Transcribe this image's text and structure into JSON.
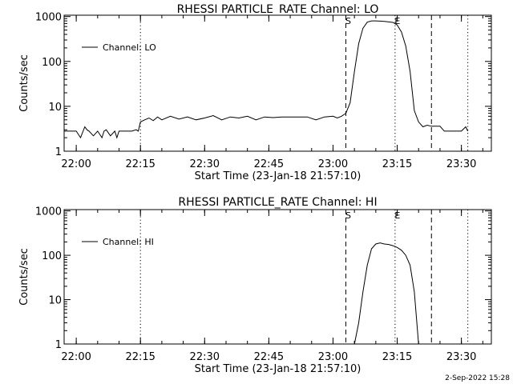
{
  "footer": {
    "timestamp": "2-Sep-2022 15:28"
  },
  "chart_data": [
    {
      "type": "line",
      "title": "RHESSI PARTICLE_RATE Channel: LO",
      "xlabel": "Start Time (23-Jan-18 21:57:10)",
      "ylabel": "Counts/sec",
      "yscale": "log",
      "ylim": [
        1,
        1000
      ],
      "xlim": [
        "21:57:10",
        "23:37:00"
      ],
      "x_ticks": [
        "22:00",
        "22:15",
        "22:30",
        "22:45",
        "23:00",
        "23:15",
        "23:30"
      ],
      "y_ticks": [
        "1",
        "10",
        "100",
        "1000"
      ],
      "legend": {
        "position": "top-left",
        "entries": [
          "Channel: LO"
        ]
      },
      "markers": [
        {
          "time": "22:15:00",
          "style": "dotted",
          "label": ""
        },
        {
          "time": "23:03:00",
          "style": "dashed",
          "label": "S"
        },
        {
          "time": "23:14:30",
          "style": "dotted",
          "label": "E"
        },
        {
          "time": "23:23:00",
          "style": "dashed",
          "label": ""
        },
        {
          "time": "23:31:30",
          "style": "dotted",
          "label": ""
        }
      ],
      "series": [
        {
          "name": "Channel: LO",
          "x": [
            "21:57:10",
            "21:58:00",
            "21:59:00",
            "22:00:00",
            "22:01:00",
            "22:02:00",
            "22:02:30",
            "22:03:00",
            "22:04:00",
            "22:05:00",
            "22:06:00",
            "22:06:30",
            "22:07:00",
            "22:08:00",
            "22:09:00",
            "22:09:30",
            "22:10:00",
            "22:11:00",
            "22:12:00",
            "22:13:00",
            "22:14:00",
            "22:14:30",
            "22:15:00",
            "22:16:00",
            "22:17:00",
            "22:18:00",
            "22:19:00",
            "22:20:00",
            "22:22:00",
            "22:24:00",
            "22:26:00",
            "22:28:00",
            "22:30:00",
            "22:32:00",
            "22:34:00",
            "22:36:00",
            "22:38:00",
            "22:40:00",
            "22:42:00",
            "22:44:00",
            "22:46:00",
            "22:48:00",
            "22:50:00",
            "22:52:00",
            "22:54:00",
            "22:56:00",
            "22:58:00",
            "23:00:00",
            "23:01:00",
            "23:02:00",
            "23:03:00",
            "23:04:00",
            "23:05:00",
            "23:06:00",
            "23:07:00",
            "23:08:00",
            "23:09:00",
            "23:10:00",
            "23:11:00",
            "23:12:00",
            "23:13:00",
            "23:14:00",
            "23:15:00",
            "23:16:00",
            "23:17:00",
            "23:18:00",
            "23:19:00",
            "23:20:00",
            "23:21:00",
            "23:22:00",
            "23:23:00",
            "23:24:00",
            "23:25:00",
            "23:26:00",
            "23:27:00",
            "23:28:00",
            "23:29:00",
            "23:30:00",
            "23:31:00",
            "23:31:30"
          ],
          "y": [
            2.8,
            2.8,
            2.8,
            2.8,
            2.0,
            3.5,
            3.0,
            2.8,
            2.2,
            2.8,
            2.0,
            2.8,
            3.0,
            2.2,
            2.8,
            2.0,
            2.8,
            2.8,
            2.8,
            2.8,
            3.0,
            2.8,
            4.5,
            5.0,
            5.5,
            4.8,
            5.8,
            5.0,
            6.0,
            5.2,
            5.8,
            5.0,
            5.5,
            6.2,
            5.0,
            5.8,
            5.5,
            6.0,
            5.0,
            5.8,
            5.6,
            5.8,
            5.8,
            5.8,
            5.8,
            5.0,
            5.8,
            6.0,
            5.5,
            6.0,
            7.0,
            12,
            60,
            250,
            550,
            750,
            800,
            800,
            790,
            780,
            760,
            740,
            650,
            450,
            220,
            60,
            8,
            4.5,
            3.5,
            3.8,
            3.6,
            3.6,
            3.6,
            2.8,
            2.8,
            2.8,
            2.8,
            2.8,
            3.5,
            2.8
          ]
        }
      ]
    },
    {
      "type": "line",
      "title": "RHESSI PARTICLE_RATE Channel: HI",
      "xlabel": "Start Time (23-Jan-18 21:57:10)",
      "ylabel": "Counts/sec",
      "yscale": "log",
      "ylim": [
        1,
        1000
      ],
      "xlim": [
        "21:57:10",
        "23:37:00"
      ],
      "x_ticks": [
        "22:00",
        "22:15",
        "22:30",
        "22:45",
        "23:00",
        "23:15",
        "23:30"
      ],
      "y_ticks": [
        "1",
        "10",
        "100",
        "1000"
      ],
      "legend": {
        "position": "top-left",
        "entries": [
          "Channel: HI"
        ]
      },
      "markers": [
        {
          "time": "22:15:00",
          "style": "dotted",
          "label": ""
        },
        {
          "time": "23:03:00",
          "style": "dashed",
          "label": "S"
        },
        {
          "time": "23:14:30",
          "style": "dotted",
          "label": "E"
        },
        {
          "time": "23:23:00",
          "style": "dashed",
          "label": ""
        },
        {
          "time": "23:31:30",
          "style": "dotted",
          "label": ""
        }
      ],
      "series": [
        {
          "name": "Channel: HI",
          "x": [
            "23:05:00",
            "23:06:00",
            "23:07:00",
            "23:08:00",
            "23:09:00",
            "23:10:00",
            "23:11:00",
            "23:12:00",
            "23:13:00",
            "23:14:00",
            "23:15:00",
            "23:16:00",
            "23:17:00",
            "23:18:00",
            "23:19:00",
            "23:20:00"
          ],
          "y": [
            1.0,
            3,
            15,
            60,
            140,
            180,
            190,
            180,
            175,
            165,
            150,
            130,
            100,
            60,
            15,
            1.0
          ]
        }
      ]
    }
  ]
}
